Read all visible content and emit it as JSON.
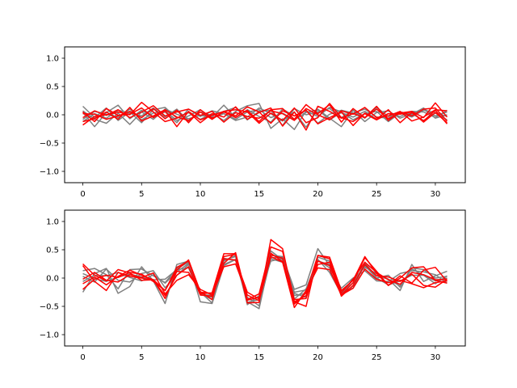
{
  "colors": {
    "gray": "#808080",
    "red": "#ff0000",
    "axes": "#000000"
  },
  "chart_data": [
    {
      "type": "line",
      "xlim": [
        -1.55,
        32.55
      ],
      "ylim": [
        -1.2,
        1.2
      ],
      "x_ticks": [
        0,
        5,
        10,
        15,
        20,
        25,
        30
      ],
      "y_ticks": [
        -1.0,
        -0.5,
        0.0,
        0.5,
        1.0
      ],
      "x_tick_labels": [
        "0",
        "5",
        "10",
        "15",
        "20",
        "25",
        "30"
      ],
      "y_tick_labels": [
        "−1.0",
        "−0.5",
        "0.0",
        "0.5",
        "1.0"
      ],
      "series": [
        {
          "color": "gray",
          "values": [
            0.15,
            -0.05,
            0.12,
            -0.1,
            0.05,
            -0.14,
            0.09,
            0.13,
            -0.06,
            0.04,
            -0.08,
            0.02,
            -0.1,
            0.06,
            0.16,
            0.2,
            -0.24,
            -0.07,
            -0.26,
            0.07,
            -0.03,
            0.13,
            0.05,
            -0.09,
            0.02,
            0.06,
            -0.12,
            0.03,
            -0.04,
            0.08,
            0.04,
            -0.03
          ]
        },
        {
          "color": "gray",
          "values": [
            0.04,
            -0.21,
            0.04,
            0.17,
            -0.07,
            0.08,
            -0.03,
            0.05,
            -0.14,
            0.1,
            -0.03,
            0.07,
            0.02,
            -0.1,
            -0.04,
            0.12,
            0.02,
            -0.11,
            0.05,
            -0.22,
            0.1,
            -0.06,
            -0.21,
            0.08,
            -0.06,
            0.13,
            -0.03,
            0.04,
            -0.01,
            0.09,
            -0.02,
            0.05
          ]
        },
        {
          "color": "gray",
          "values": [
            -0.12,
            0.02,
            -0.06,
            0.08,
            0.03,
            -0.02,
            0.12,
            -0.04,
            0.1,
            -0.11,
            0.05,
            -0.01,
            0.06,
            0.13,
            -0.09,
            0.06,
            0.08,
            -0.19,
            0.11,
            0.0,
            0.05,
            0.11,
            -0.05,
            0.08,
            -0.12,
            0.04,
            0.07,
            -0.06,
            0.02,
            -0.1,
            0.03,
            -0.09
          ]
        },
        {
          "color": "gray",
          "values": [
            0.07,
            -0.08,
            -0.15,
            0.03,
            -0.17,
            0.05,
            -0.08,
            0.1,
            0.01,
            -0.07,
            -0.01,
            -0.04,
            0.17,
            -0.05,
            0.09,
            -0.03,
            -0.13,
            0.1,
            -0.02,
            0.08,
            -0.15,
            0.01,
            0.08,
            0.03,
            0.1,
            -0.04,
            -0.06,
            0.05,
            0.01,
            0.12,
            -0.06,
            0.0
          ]
        },
        {
          "color": "gray",
          "values": [
            -0.08,
            0.06,
            0.01,
            -0.05,
            0.1,
            -0.09,
            0.03,
            0.07,
            -0.1,
            -0.02,
            0.09,
            -0.06,
            0.02,
            -0.08,
            0.05,
            0.09,
            -0.05,
            0.03,
            -0.09,
            0.04,
            0.09,
            -0.09,
            0.04,
            -0.04,
            0.06,
            -0.08,
            0.02,
            -0.03,
            0.06,
            0.05,
            -0.05,
            0.08
          ]
        },
        {
          "color": "red",
          "values": [
            -0.18,
            -0.03,
            0.0,
            0.05,
            0.0,
            0.22,
            0.05,
            -0.12,
            -0.06,
            0.05,
            -0.14,
            0.02,
            -0.04,
            0.14,
            -0.08,
            0.04,
            0.12,
            -0.2,
            0.05,
            -0.27,
            0.15,
            0.06,
            -0.06,
            0.02,
            -0.05,
            0.1,
            -0.07,
            0.03,
            0.06,
            -0.05,
            0.21,
            -0.04
          ]
        },
        {
          "color": "red",
          "values": [
            0.02,
            0.01,
            -0.08,
            -0.02,
            0.06,
            -0.05,
            0.11,
            -0.07,
            0.08,
            -0.14,
            0.09,
            -0.06,
            0.05,
            -0.05,
            0.08,
            -0.12,
            0.09,
            0.11,
            -0.08,
            0.18,
            0.02,
            0.18,
            -0.13,
            0.11,
            -0.05,
            0.15,
            -0.1,
            0.05,
            -0.02,
            0.1,
            0.12,
            -0.11
          ]
        },
        {
          "color": "red",
          "values": [
            0.05,
            -0.12,
            0.11,
            -0.01,
            0.01,
            0.12,
            -0.05,
            0.07,
            -0.21,
            0.06,
            -0.09,
            -0.01,
            0.06,
            -0.02,
            0.14,
            0.05,
            -0.15,
            0.07,
            -0.02,
            0.08,
            -0.16,
            -0.05,
            0.05,
            -0.19,
            0.03,
            -0.08,
            0.09,
            -0.14,
            0.04,
            -0.11,
            0.08,
            -0.16
          ]
        },
        {
          "color": "red",
          "values": [
            -0.05,
            0.07,
            -0.01,
            0.09,
            -0.05,
            0.05,
            0.16,
            -0.02,
            0.05,
            0.1,
            -0.01,
            0.06,
            -0.13,
            0.04,
            -0.03,
            -0.06,
            0.07,
            0.02,
            -0.1,
            0.11,
            0.0,
            -0.09,
            0.07,
            0.01,
            0.13,
            -0.05,
            -0.02,
            0.06,
            -0.11,
            -0.04,
            0.09,
            0.07
          ]
        },
        {
          "color": "red",
          "values": [
            -0.12,
            -0.07,
            0.05,
            -0.08,
            0.13,
            -0.11,
            -0.02,
            0.09,
            -0.04,
            -0.1,
            0.05,
            -0.08,
            0.06,
            0.09,
            0.05,
            -0.15,
            0.03,
            -0.1,
            0.12,
            -0.14,
            -0.05,
            0.2,
            -0.05,
            -0.12,
            0.02,
            -0.09,
            0.02,
            0.01,
            0.05,
            -0.13,
            0.04,
            -0.14
          ]
        }
      ]
    },
    {
      "type": "line",
      "xlim": [
        -1.55,
        32.55
      ],
      "ylim": [
        -1.2,
        1.2
      ],
      "x_ticks": [
        0,
        5,
        10,
        15,
        20,
        25,
        30
      ],
      "y_ticks": [
        -1.0,
        -0.5,
        0.0,
        0.5,
        1.0
      ],
      "x_tick_labels": [
        "0",
        "5",
        "10",
        "15",
        "20",
        "25",
        "30"
      ],
      "y_tick_labels": [
        "−1.0",
        "−0.5",
        "0.0",
        "0.5",
        "1.0"
      ],
      "series": [
        {
          "color": "gray",
          "values": [
            -0.25,
            0.08,
            0.17,
            -0.27,
            -0.15,
            0.2,
            -0.05,
            -0.45,
            0.24,
            0.3,
            -0.27,
            -0.38,
            0.3,
            0.4,
            -0.42,
            -0.54,
            0.4,
            0.38,
            -0.2,
            -0.12,
            0.52,
            0.22,
            -0.22,
            -0.18,
            0.25,
            0.04,
            -0.02,
            -0.22,
            0.24,
            -0.06,
            0.04,
            0.12
          ]
        },
        {
          "color": "gray",
          "values": [
            0.13,
            0.17,
            0.06,
            -0.19,
            0.15,
            0.16,
            0.04,
            -0.08,
            0.17,
            0.28,
            -0.42,
            -0.45,
            0.22,
            0.33,
            -0.34,
            -0.49,
            0.34,
            0.28,
            -0.37,
            -0.19,
            0.33,
            0.1,
            -0.28,
            -0.03,
            0.19,
            0.08,
            -0.02,
            -0.14,
            0.16,
            0.05,
            -0.1,
            0.04
          ]
        },
        {
          "color": "gray",
          "values": [
            0.03,
            -0.07,
            0.16,
            -0.04,
            -0.07,
            0.08,
            0.13,
            -0.17,
            0.05,
            0.24,
            -0.25,
            -0.44,
            0.35,
            0.31,
            -0.39,
            -0.34,
            0.48,
            0.32,
            -0.31,
            -0.27,
            0.37,
            0.3,
            -0.24,
            -0.09,
            0.22,
            0.0,
            -0.12,
            -0.05,
            0.05,
            0.05,
            -0.05,
            0.0
          ]
        },
        {
          "color": "gray",
          "values": [
            0.08,
            -0.01,
            -0.06,
            0.02,
            0.07,
            0.02,
            -0.03,
            -0.02,
            0.15,
            0.18,
            -0.3,
            -0.3,
            0.32,
            0.38,
            -0.47,
            -0.31,
            0.3,
            0.35,
            -0.27,
            -0.34,
            0.32,
            0.18,
            -0.18,
            0.0,
            0.13,
            -0.05,
            -0.06,
            0.08,
            0.13,
            0.11,
            0.06,
            -0.09
          ]
        },
        {
          "color": "gray",
          "values": [
            -0.06,
            0.05,
            0.04,
            0.1,
            0.01,
            -0.05,
            0.06,
            -0.09,
            0.11,
            0.26,
            -0.28,
            -0.34,
            0.24,
            0.33,
            -0.43,
            -0.38,
            0.36,
            0.36,
            -0.25,
            -0.21,
            0.3,
            0.24,
            -0.3,
            -0.14,
            0.28,
            0.0,
            0.05,
            -0.16,
            0.18,
            0.15,
            0.0,
            0.03
          ]
        },
        {
          "color": "red",
          "values": [
            0.25,
            0.05,
            -0.05,
            0.15,
            0.09,
            -0.04,
            -0.03,
            -0.22,
            0.19,
            0.3,
            -0.28,
            -0.26,
            0.43,
            0.43,
            -0.44,
            -0.43,
            0.68,
            0.52,
            -0.42,
            -0.5,
            0.4,
            0.34,
            -0.3,
            -0.08,
            0.36,
            0.12,
            -0.13,
            0.0,
            0.18,
            0.2,
            -0.04,
            -0.09
          ]
        },
        {
          "color": "red",
          "values": [
            -0.2,
            -0.02,
            0.05,
            0.01,
            0.1,
            0.07,
            -0.06,
            -0.22,
            0.14,
            0.32,
            -0.24,
            -0.38,
            0.38,
            0.42,
            -0.38,
            -0.28,
            0.55,
            0.47,
            -0.38,
            -0.36,
            0.3,
            0.22,
            -0.26,
            -0.02,
            0.28,
            0.1,
            -0.03,
            -0.11,
            0.1,
            0.06,
            -0.03,
            -0.02
          ]
        },
        {
          "color": "red",
          "values": [
            0.22,
            -0.06,
            -0.22,
            0.1,
            0.03,
            0.0,
            -0.04,
            -0.31,
            0.05,
            0.2,
            -0.3,
            -0.32,
            0.26,
            0.45,
            -0.39,
            -0.34,
            0.41,
            0.35,
            -0.46,
            -0.26,
            0.4,
            0.37,
            -0.22,
            -0.04,
            0.38,
            0.08,
            -0.13,
            0.04,
            -0.09,
            0.14,
            0.19,
            -0.06
          ]
        },
        {
          "color": "red",
          "values": [
            -0.1,
            0.02,
            -0.12,
            0.03,
            0.14,
            0.05,
            -0.03,
            -0.36,
            0.12,
            0.1,
            -0.25,
            -0.27,
            0.34,
            0.32,
            -0.25,
            -0.37,
            0.44,
            0.29,
            -0.42,
            -0.31,
            0.24,
            0.28,
            -0.32,
            -0.13,
            0.24,
            0.04,
            0.02,
            -0.06,
            0.07,
            -0.13,
            -0.16,
            -0.02
          ]
        },
        {
          "color": "red",
          "values": [
            -0.02,
            0.1,
            -0.04,
            -0.07,
            0.06,
            0.01,
            0.09,
            -0.28,
            -0.04,
            0.06,
            -0.2,
            -0.3,
            0.2,
            0.25,
            -0.3,
            -0.4,
            0.38,
            0.28,
            -0.52,
            -0.22,
            0.18,
            0.15,
            -0.3,
            -0.18,
            0.16,
            -0.02,
            -0.08,
            -0.04,
            -0.1,
            -0.17,
            -0.08,
            -0.05
          ]
        }
      ]
    }
  ]
}
